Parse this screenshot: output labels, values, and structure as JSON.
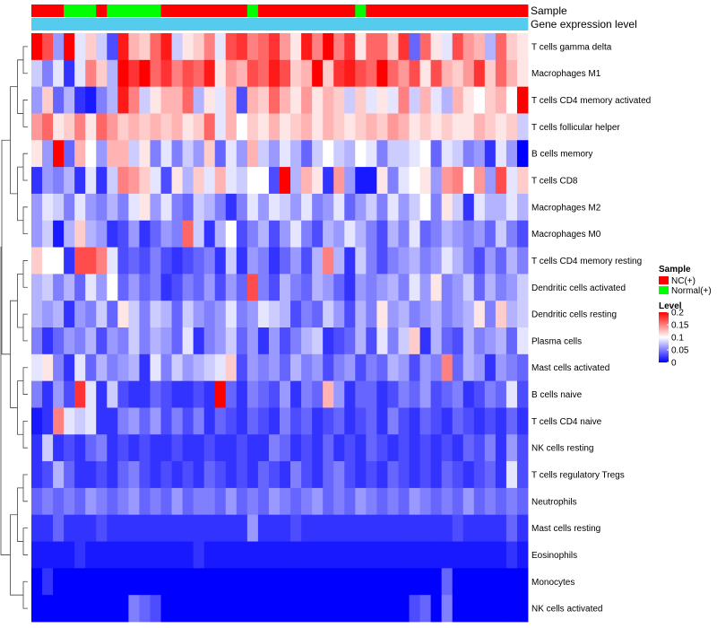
{
  "chart_data": {
    "type": "heatmap",
    "title": "",
    "annotation_tracks": [
      "Sample",
      "Gene expression level"
    ],
    "legend": {
      "sample_title": "Sample",
      "sample_entries": [
        {
          "label": "NC(+)",
          "color": "#ff0000"
        },
        {
          "label": "Normal(+)",
          "color": "#00ff00"
        }
      ],
      "level_title": "Level",
      "level_ticks": [
        "0.2",
        "0.15",
        "0.1",
        "0.05",
        "0"
      ],
      "level_values": [
        0.2,
        0.15,
        0.1,
        0.05,
        0
      ]
    },
    "color_scale": {
      "min": 0,
      "mid": 0.1,
      "max": 0.2,
      "low": "#0000ff",
      "mid_color": "#ffffff",
      "high": "#ff0000"
    },
    "expression_level_color": "#55ccee",
    "n_samples": 46,
    "sample_groups": [
      "NC",
      "NC",
      "NC",
      "N",
      "N",
      "N",
      "NC",
      "N",
      "N",
      "N",
      "N",
      "N",
      "NC",
      "NC",
      "NC",
      "NC",
      "NC",
      "NC",
      "NC",
      "NC",
      "N",
      "NC",
      "NC",
      "NC",
      "NC",
      "NC",
      "NC",
      "NC",
      "NC",
      "NC",
      "N",
      "NC",
      "NC",
      "NC",
      "NC",
      "NC",
      "NC",
      "NC",
      "NC",
      "NC",
      "NC",
      "NC",
      "NC",
      "NC",
      "NC",
      "NC"
    ],
    "rows": [
      {
        "name": "T cells gamma delta",
        "values": [
          0.2,
          0.17,
          0.06,
          0.2,
          0.09,
          0.12,
          0.08,
          0.03,
          0.19,
          0.13,
          0.12,
          0.16,
          0.19,
          0.08,
          0.11,
          0.12,
          0.15,
          0.09,
          0.17,
          0.18,
          0.15,
          0.16,
          0.18,
          0.14,
          0.11,
          0.19,
          0.15,
          0.2,
          0.15,
          0.18,
          0.11,
          0.16,
          0.16,
          0.12,
          0.18,
          0.04,
          0.16,
          0.11,
          0.09,
          0.17,
          0.14,
          0.13,
          0.07,
          0.16,
          0.12,
          0.11
        ]
      },
      {
        "name": "Macrophages M1",
        "values": [
          0.08,
          0.05,
          0.09,
          0.02,
          0.09,
          0.15,
          0.12,
          0.07,
          0.2,
          0.18,
          0.2,
          0.16,
          0.18,
          0.15,
          0.17,
          0.16,
          0.19,
          0.11,
          0.14,
          0.13,
          0.17,
          0.16,
          0.19,
          0.17,
          0.12,
          0.13,
          0.2,
          0.12,
          0.18,
          0.19,
          0.17,
          0.16,
          0.2,
          0.16,
          0.14,
          0.17,
          0.11,
          0.17,
          0.13,
          0.12,
          0.14,
          0.18,
          0.12,
          0.16,
          0.13,
          0.11
        ]
      },
      {
        "name": "T cells CD4 memory activated",
        "values": [
          0.06,
          0.12,
          0.04,
          0.07,
          0.02,
          0.01,
          0.05,
          0.07,
          0.19,
          0.15,
          0.08,
          0.11,
          0.13,
          0.13,
          0.16,
          0.07,
          0.11,
          0.09,
          0.13,
          0.03,
          0.13,
          0.12,
          0.16,
          0.13,
          0.11,
          0.14,
          0.11,
          0.13,
          0.12,
          0.08,
          0.12,
          0.09,
          0.11,
          0.09,
          0.15,
          0.08,
          0.13,
          0.09,
          0.07,
          0.13,
          0.11,
          0.1,
          0.12,
          0.13,
          0.1,
          0.2
        ]
      },
      {
        "name": "T cells follicular helper",
        "values": [
          0.14,
          0.16,
          0.11,
          0.12,
          0.15,
          0.11,
          0.16,
          0.14,
          0.12,
          0.13,
          0.12,
          0.13,
          0.12,
          0.13,
          0.11,
          0.12,
          0.16,
          0.09,
          0.13,
          0.1,
          0.12,
          0.11,
          0.13,
          0.11,
          0.12,
          0.13,
          0.11,
          0.13,
          0.12,
          0.11,
          0.12,
          0.13,
          0.12,
          0.14,
          0.13,
          0.11,
          0.12,
          0.11,
          0.12,
          0.11,
          0.11,
          0.13,
          0.12,
          0.11,
          0.12,
          0.08
        ]
      },
      {
        "name": "B cells memory",
        "values": [
          0.11,
          0.06,
          0.2,
          0.04,
          0.13,
          0.1,
          0.06,
          0.13,
          0.13,
          0.08,
          0.11,
          0.05,
          0.09,
          0.05,
          0.08,
          0.06,
          0.12,
          0.04,
          0.09,
          0.06,
          0.13,
          0.08,
          0.06,
          0.09,
          0.07,
          0.04,
          0.08,
          0.1,
          0.08,
          0.07,
          0.1,
          0.09,
          0.05,
          0.08,
          0.08,
          0.09,
          0.1,
          0.04,
          0.09,
          0.08,
          0.05,
          0.06,
          0.02,
          0.09,
          0.06,
          0.0
        ]
      },
      {
        "name": "T cells CD8",
        "values": [
          0.02,
          0.06,
          0.05,
          0.07,
          0.02,
          0.09,
          0.02,
          0.08,
          0.15,
          0.14,
          0.12,
          0.09,
          0.03,
          0.11,
          0.07,
          0.12,
          0.09,
          0.13,
          0.09,
          0.08,
          0.1,
          0.1,
          0.03,
          0.2,
          0.07,
          0.13,
          0.11,
          0.02,
          0.14,
          0.06,
          0.01,
          0.01,
          0.11,
          0.05,
          0.09,
          0.1,
          0.11,
          0.06,
          0.14,
          0.15,
          0.1,
          0.14,
          0.06,
          0.17,
          0.09,
          0.12
        ]
      },
      {
        "name": "Macrophages M2",
        "values": [
          0.06,
          0.09,
          0.08,
          0.05,
          0.09,
          0.06,
          0.05,
          0.07,
          0.05,
          0.09,
          0.11,
          0.06,
          0.09,
          0.05,
          0.04,
          0.08,
          0.07,
          0.05,
          0.02,
          0.05,
          0.09,
          0.06,
          0.09,
          0.08,
          0.06,
          0.09,
          0.05,
          0.06,
          0.09,
          0.04,
          0.06,
          0.08,
          0.05,
          0.09,
          0.06,
          0.08,
          0.1,
          0.05,
          0.11,
          0.08,
          0.02,
          0.09,
          0.07,
          0.07,
          0.09,
          0.07
        ]
      },
      {
        "name": "Macrophages M0",
        "values": [
          0.06,
          0.08,
          0.01,
          0.07,
          0.12,
          0.07,
          0.06,
          0.02,
          0.03,
          0.06,
          0.02,
          0.04,
          0.06,
          0.05,
          0.16,
          0.08,
          0.02,
          0.07,
          0.1,
          0.03,
          0.05,
          0.07,
          0.03,
          0.06,
          0.09,
          0.05,
          0.03,
          0.07,
          0.06,
          0.09,
          0.07,
          0.05,
          0.03,
          0.07,
          0.05,
          0.09,
          0.04,
          0.05,
          0.07,
          0.06,
          0.05,
          0.06,
          0.04,
          0.08,
          0.05,
          0.03
        ]
      },
      {
        "name": "T cells CD4 memory resting",
        "values": [
          0.12,
          0.1,
          0.1,
          0.02,
          0.17,
          0.17,
          0.15,
          0.09,
          0.03,
          0.04,
          0.03,
          0.05,
          0.03,
          0.02,
          0.03,
          0.04,
          0.05,
          0.02,
          0.08,
          0.02,
          0.06,
          0.05,
          0.02,
          0.04,
          0.06,
          0.03,
          0.07,
          0.15,
          0.07,
          0.02,
          0.08,
          0.05,
          0.03,
          0.05,
          0.06,
          0.07,
          0.05,
          0.06,
          0.09,
          0.07,
          0.05,
          0.03,
          0.06,
          0.04,
          0.07,
          0.05
        ]
      },
      {
        "name": "Dendritic cells activated",
        "values": [
          0.07,
          0.08,
          0.05,
          0.07,
          0.04,
          0.09,
          0.06,
          0.1,
          0.04,
          0.06,
          0.04,
          0.05,
          0.02,
          0.03,
          0.05,
          0.04,
          0.06,
          0.03,
          0.06,
          0.04,
          0.17,
          0.05,
          0.03,
          0.07,
          0.05,
          0.04,
          0.07,
          0.06,
          0.04,
          0.02,
          0.06,
          0.05,
          0.06,
          0.07,
          0.05,
          0.09,
          0.06,
          0.11,
          0.05,
          0.06,
          0.08,
          0.04,
          0.07,
          0.05,
          0.06,
          0.08
        ]
      },
      {
        "name": "Dendritic cells resting",
        "values": [
          0.07,
          0.06,
          0.07,
          0.02,
          0.06,
          0.05,
          0.08,
          0.04,
          0.11,
          0.08,
          0.05,
          0.08,
          0.07,
          0.04,
          0.08,
          0.06,
          0.05,
          0.06,
          0.09,
          0.05,
          0.06,
          0.09,
          0.08,
          0.07,
          0.03,
          0.05,
          0.04,
          0.08,
          0.06,
          0.03,
          0.07,
          0.05,
          0.11,
          0.06,
          0.07,
          0.05,
          0.06,
          0.07,
          0.05,
          0.06,
          0.07,
          0.11,
          0.05,
          0.12,
          0.07,
          0.08
        ]
      },
      {
        "name": "Plasma cells",
        "values": [
          0.05,
          0.02,
          0.04,
          0.06,
          0.05,
          0.07,
          0.03,
          0.06,
          0.05,
          0.08,
          0.05,
          0.07,
          0.06,
          0.04,
          0.09,
          0.02,
          0.05,
          0.06,
          0.08,
          0.04,
          0.06,
          0.02,
          0.06,
          0.03,
          0.05,
          0.07,
          0.08,
          0.02,
          0.03,
          0.04,
          0.07,
          0.03,
          0.09,
          0.05,
          0.08,
          0.12,
          0.02,
          0.07,
          0.04,
          0.03,
          0.07,
          0.05,
          0.06,
          0.07,
          0.04,
          0.09
        ]
      },
      {
        "name": "Mast cells activated",
        "values": [
          0.09,
          0.11,
          0.05,
          0.02,
          0.09,
          0.04,
          0.07,
          0.05,
          0.06,
          0.07,
          0.02,
          0.09,
          0.05,
          0.08,
          0.06,
          0.07,
          0.08,
          0.09,
          0.12,
          0.03,
          0.06,
          0.05,
          0.06,
          0.04,
          0.07,
          0.05,
          0.06,
          0.03,
          0.05,
          0.06,
          0.03,
          0.05,
          0.04,
          0.07,
          0.06,
          0.03,
          0.06,
          0.05,
          0.15,
          0.04,
          0.07,
          0.06,
          0.02,
          0.06,
          0.05,
          0.04
        ]
      },
      {
        "name": "B cells naive",
        "values": [
          0.05,
          0.02,
          0.06,
          0.03,
          0.18,
          0.09,
          0.02,
          0.08,
          0.03,
          0.02,
          0.02,
          0.04,
          0.03,
          0.02,
          0.02,
          0.03,
          0.02,
          0.2,
          0.04,
          0.02,
          0.05,
          0.04,
          0.03,
          0.06,
          0.02,
          0.05,
          0.04,
          0.13,
          0.06,
          0.02,
          0.04,
          0.04,
          0.02,
          0.03,
          0.05,
          0.04,
          0.06,
          0.03,
          0.04,
          0.05,
          0.02,
          0.03,
          0.05,
          0.04,
          0.09,
          0.03
        ]
      },
      {
        "name": "T cells CD4 naive",
        "values": [
          0.01,
          0.02,
          0.15,
          0.09,
          0.08,
          0.09,
          0.02,
          0.02,
          0.05,
          0.06,
          0.04,
          0.06,
          0.03,
          0.05,
          0.03,
          0.05,
          0.02,
          0.04,
          0.03,
          0.02,
          0.04,
          0.03,
          0.02,
          0.05,
          0.03,
          0.04,
          0.02,
          0.03,
          0.04,
          0.02,
          0.03,
          0.04,
          0.02,
          0.05,
          0.03,
          0.02,
          0.04,
          0.03,
          0.02,
          0.04,
          0.03,
          0.02,
          0.03,
          0.02,
          0.04,
          0.02
        ]
      },
      {
        "name": "NK cells resting",
        "values": [
          0.02,
          0.08,
          0.02,
          0.03,
          0.02,
          0.04,
          0.05,
          0.02,
          0.03,
          0.02,
          0.03,
          0.02,
          0.02,
          0.03,
          0.02,
          0.02,
          0.03,
          0.02,
          0.02,
          0.03,
          0.02,
          0.02,
          0.05,
          0.04,
          0.02,
          0.03,
          0.02,
          0.04,
          0.02,
          0.03,
          0.02,
          0.04,
          0.03,
          0.02,
          0.03,
          0.02,
          0.03,
          0.02,
          0.03,
          0.02,
          0.04,
          0.03,
          0.05,
          0.02,
          0.06,
          0.03
        ]
      },
      {
        "name": "T cells regulatory  Tregs",
        "values": [
          0.02,
          0.03,
          0.07,
          0.04,
          0.02,
          0.02,
          0.03,
          0.02,
          0.04,
          0.05,
          0.03,
          0.02,
          0.03,
          0.02,
          0.03,
          0.02,
          0.04,
          0.03,
          0.02,
          0.03,
          0.02,
          0.04,
          0.03,
          0.02,
          0.05,
          0.03,
          0.02,
          0.04,
          0.05,
          0.03,
          0.02,
          0.03,
          0.02,
          0.04,
          0.03,
          0.02,
          0.03,
          0.02,
          0.04,
          0.03,
          0.02,
          0.03,
          0.04,
          0.02,
          0.09,
          0.03
        ]
      },
      {
        "name": "Neutrophils",
        "values": [
          0.04,
          0.05,
          0.04,
          0.05,
          0.04,
          0.06,
          0.05,
          0.04,
          0.05,
          0.06,
          0.04,
          0.05,
          0.04,
          0.06,
          0.04,
          0.05,
          0.05,
          0.04,
          0.06,
          0.04,
          0.05,
          0.04,
          0.06,
          0.05,
          0.04,
          0.05,
          0.06,
          0.04,
          0.05,
          0.04,
          0.06,
          0.05,
          0.04,
          0.05,
          0.04,
          0.06,
          0.05,
          0.04,
          0.05,
          0.04,
          0.06,
          0.04,
          0.05,
          0.04,
          0.05,
          0.04
        ]
      },
      {
        "name": "Mast cells resting",
        "values": [
          0.02,
          0.02,
          0.04,
          0.02,
          0.02,
          0.02,
          0.03,
          0.02,
          0.02,
          0.02,
          0.02,
          0.02,
          0.02,
          0.02,
          0.02,
          0.02,
          0.02,
          0.02,
          0.02,
          0.02,
          0.06,
          0.02,
          0.02,
          0.02,
          0.03,
          0.02,
          0.02,
          0.02,
          0.02,
          0.02,
          0.02,
          0.02,
          0.02,
          0.02,
          0.02,
          0.02,
          0.02,
          0.02,
          0.02,
          0.03,
          0.02,
          0.02,
          0.02,
          0.02,
          0.04,
          0.02
        ]
      },
      {
        "name": "Eosinophils",
        "values": [
          0.01,
          0.01,
          0.01,
          0.01,
          0.02,
          0.01,
          0.01,
          0.01,
          0.01,
          0.01,
          0.01,
          0.01,
          0.01,
          0.01,
          0.01,
          0.02,
          0.01,
          0.01,
          0.01,
          0.01,
          0.01,
          0.01,
          0.01,
          0.01,
          0.01,
          0.01,
          0.01,
          0.01,
          0.01,
          0.01,
          0.01,
          0.01,
          0.01,
          0.01,
          0.01,
          0.01,
          0.01,
          0.01,
          0.01,
          0.01,
          0.01,
          0.01,
          0.01,
          0.01,
          0.02,
          0.01
        ]
      },
      {
        "name": "Monocytes",
        "values": [
          0.0,
          0.02,
          0.0,
          0.0,
          0.0,
          0.0,
          0.0,
          0.0,
          0.0,
          0.0,
          0.0,
          0.0,
          0.0,
          0.0,
          0.0,
          0.0,
          0.0,
          0.0,
          0.0,
          0.0,
          0.0,
          0.0,
          0.0,
          0.0,
          0.0,
          0.0,
          0.0,
          0.0,
          0.0,
          0.0,
          0.0,
          0.0,
          0.0,
          0.0,
          0.0,
          0.0,
          0.0,
          0.0,
          0.04,
          0.0,
          0.0,
          0.0,
          0.0,
          0.0,
          0.0,
          0.0
        ]
      },
      {
        "name": "NK cells activated",
        "values": [
          0.0,
          0.0,
          0.0,
          0.0,
          0.0,
          0.0,
          0.0,
          0.0,
          0.0,
          0.05,
          0.04,
          0.03,
          0.0,
          0.0,
          0.0,
          0.0,
          0.0,
          0.0,
          0.0,
          0.0,
          0.0,
          0.0,
          0.0,
          0.0,
          0.0,
          0.0,
          0.0,
          0.0,
          0.0,
          0.0,
          0.0,
          0.0,
          0.0,
          0.0,
          0.0,
          0.03,
          0.04,
          0.0,
          0.05,
          0.0,
          0.0,
          0.0,
          0.0,
          0.0,
          0.0,
          0.0
        ]
      }
    ]
  }
}
